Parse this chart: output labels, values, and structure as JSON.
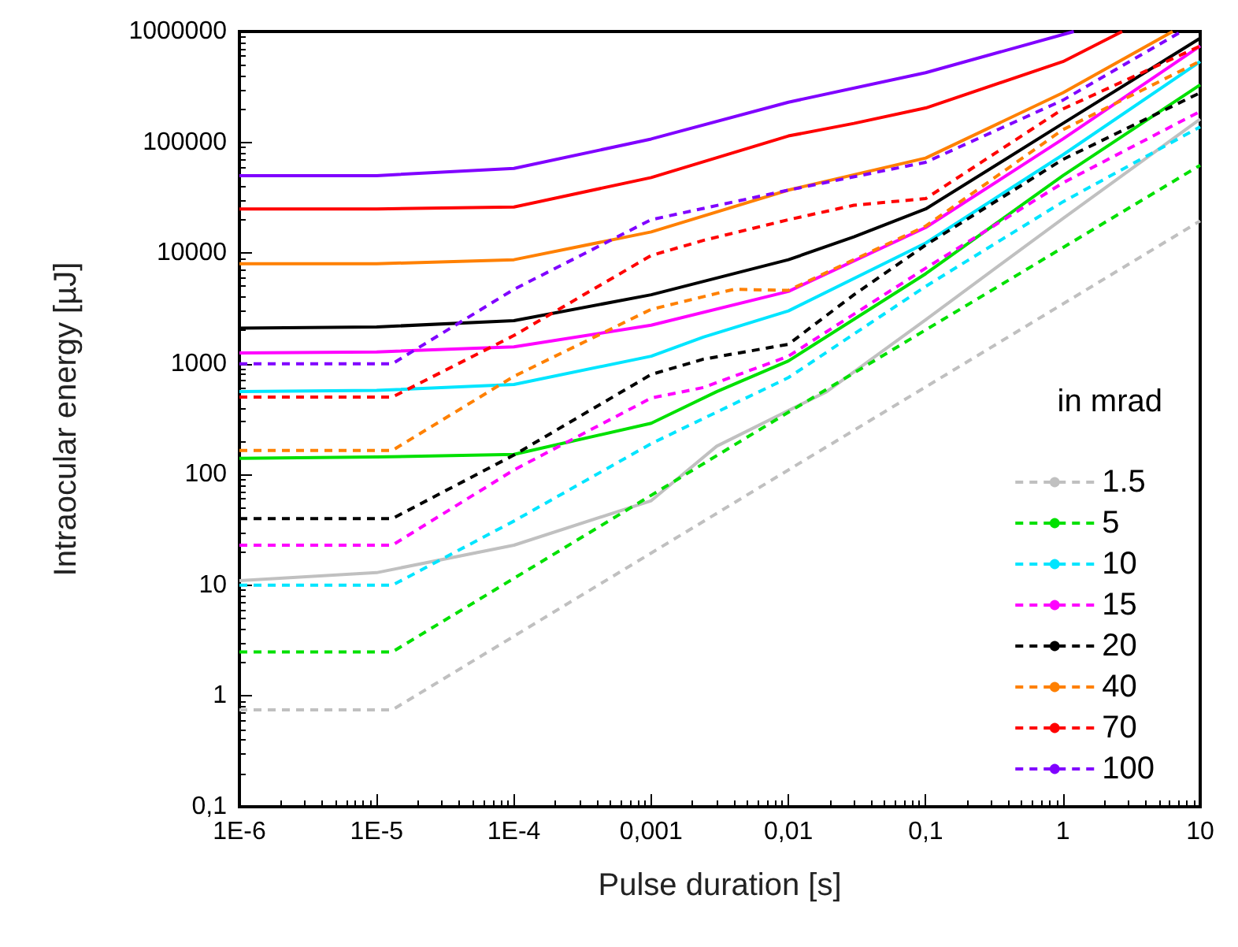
{
  "chart_data": {
    "type": "line",
    "xlabel": "Pulse duration [s]",
    "ylabel": "Intraocular energy [µJ]",
    "legend_title": "in mrad",
    "log": "xy",
    "grid": false,
    "legend": "bottom right",
    "marker": "none",
    "xlim": [
      1e-06,
      10
    ],
    "ylim": [
      0.1,
      1000000
    ],
    "xticks": [
      {
        "value": 1e-06,
        "label": "1E-6"
      },
      {
        "value": 1e-05,
        "label": "1E-5"
      },
      {
        "value": 0.0001,
        "label": "1E-4"
      },
      {
        "value": 0.001,
        "label": "0,001"
      },
      {
        "value": 0.01,
        "label": "0,01"
      },
      {
        "value": 0.1,
        "label": "0,1"
      },
      1,
      10
    ],
    "yticks": [
      {
        "value": 0.1,
        "label": "0,1"
      },
      1,
      10,
      100,
      1000,
      10000,
      100000,
      1000000
    ],
    "series": [
      {
        "color": "#8000ff",
        "line_style": "solid",
        "x": [
          1e-06,
          1e-05,
          0.0001,
          0.001,
          0.01,
          0.1,
          1.2
        ],
        "values": [
          50000,
          50000,
          58000,
          107000,
          230000,
          425000,
          1000000
        ]
      },
      {
        "color": "#ff0000",
        "line_style": "solid",
        "x": [
          1e-06,
          1e-05,
          0.0001,
          0.001,
          0.01,
          0.03,
          0.1,
          1,
          2.7
        ],
        "values": [
          25000,
          25000,
          26000,
          48000,
          114000,
          148000,
          204000,
          535000,
          1000000
        ]
      },
      {
        "color": "#ff8000",
        "line_style": "solid",
        "x": [
          1e-06,
          1e-05,
          0.0001,
          0.001,
          0.01,
          0.1,
          1,
          6.3
        ],
        "values": [
          8000,
          8000,
          8700,
          15500,
          37000,
          72000,
          280000,
          1000000
        ]
      },
      {
        "color": "#000000",
        "line_style": "solid",
        "x": [
          1e-06,
          1e-05,
          0.0001,
          0.001,
          0.01,
          0.03,
          0.1,
          1,
          10
        ],
        "values": [
          2100,
          2150,
          2450,
          4200,
          8700,
          14000,
          25000,
          148000,
          870000
        ]
      },
      {
        "color": "#ff00ff",
        "line_style": "solid",
        "x": [
          1e-06,
          1e-05,
          0.0001,
          0.001,
          0.01,
          0.1,
          1,
          10
        ],
        "values": [
          1250,
          1280,
          1420,
          2230,
          4500,
          17000,
          107000,
          740000
        ]
      },
      {
        "color": "#00e5ff",
        "line_style": "solid",
        "x": [
          1e-06,
          1e-05,
          0.0001,
          0.001,
          0.0024,
          0.01,
          0.1,
          1,
          10
        ],
        "values": [
          560,
          575,
          650,
          1170,
          1740,
          3000,
          12300,
          77000,
          535000
        ]
      },
      {
        "color": "#00e000",
        "line_style": "solid",
        "x": [
          1e-06,
          1e-05,
          0.0001,
          0.001,
          0.003,
          0.01,
          0.1,
          1,
          10
        ],
        "values": [
          140,
          144,
          152,
          290,
          560,
          1060,
          6500,
          50000,
          330000
        ]
      },
      {
        "color": "#c0c0c0",
        "line_style": "solid",
        "x": [
          1e-06,
          1e-05,
          0.0001,
          0.001,
          0.003,
          0.019,
          0.1,
          1,
          10
        ],
        "values": [
          11,
          13,
          23,
          58,
          180,
          560,
          2500,
          20500,
          162000
        ]
      },
      {
        "name": "1.5",
        "color": "#c0c0c0",
        "line_style": "dashed",
        "x": [
          1e-06,
          1.3e-05,
          0.01,
          10
        ],
        "values": [
          0.75,
          0.75,
          110,
          19500
        ]
      },
      {
        "name": "5",
        "color": "#00e000",
        "line_style": "dashed",
        "x": [
          1e-06,
          1.3e-05,
          0.01,
          10
        ],
        "values": [
          2.5,
          2.5,
          365,
          62000
        ]
      },
      {
        "name": "10",
        "color": "#00e5ff",
        "line_style": "dashed",
        "x": [
          1e-06,
          1.3e-05,
          0.0001,
          0.001,
          0.01,
          0.1,
          1,
          10
        ],
        "values": [
          10,
          10,
          38,
          190,
          750,
          5000,
          29000,
          138000
        ]
      },
      {
        "name": "15",
        "color": "#ff00ff",
        "line_style": "dashed",
        "x": [
          1e-06,
          1.3e-05,
          0.0001,
          0.001,
          0.0024,
          0.01,
          0.1,
          1,
          10
        ],
        "values": [
          23,
          23,
          110,
          490,
          610,
          1170,
          7300,
          43000,
          190000
        ]
      },
      {
        "name": "20",
        "color": "#000000",
        "line_style": "dashed",
        "x": [
          1e-06,
          1.3e-05,
          0.0001,
          0.001,
          0.0024,
          0.01,
          0.03,
          0.1,
          1,
          10
        ],
        "values": [
          40,
          40,
          150,
          800,
          1100,
          1500,
          4200,
          11800,
          70000,
          280000
        ]
      },
      {
        "name": "40",
        "color": "#ff8000",
        "line_style": "dashed",
        "x": [
          1e-06,
          1.3e-05,
          0.0001,
          0.001,
          0.004,
          0.01,
          0.1,
          1,
          10
        ],
        "values": [
          165,
          165,
          770,
          3100,
          4700,
          4600,
          17500,
          130000,
          540000
        ]
      },
      {
        "name": "70",
        "color": "#ff0000",
        "line_style": "dashed",
        "x": [
          1e-06,
          1.3e-05,
          0.0001,
          0.001,
          0.0024,
          0.01,
          0.03,
          0.1,
          1,
          10
        ],
        "values": [
          500,
          500,
          1800,
          9500,
          13000,
          20000,
          27000,
          31000,
          200000,
          740000
        ]
      },
      {
        "name": "100",
        "color": "#8000ff",
        "line_style": "dashed",
        "x": [
          1e-06,
          1.3e-05,
          0.0001,
          0.001,
          0.01,
          0.1,
          1,
          7.3
        ],
        "values": [
          1000,
          1000,
          4700,
          20000,
          37000,
          66000,
          240000,
          1000000
        ]
      }
    ]
  }
}
